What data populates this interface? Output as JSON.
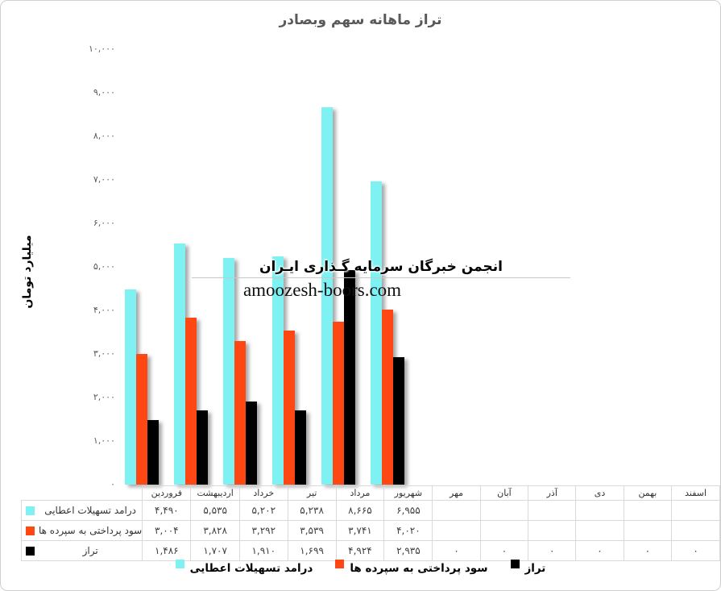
{
  "watermark": {
    "line1": "انجمن خبرگان سرمایه گـذاری ایـران",
    "line2": "amoozesh-boors.com"
  },
  "colors": {
    "series_cyan": "#7EF2F2",
    "series_orange": "#FF4713",
    "series_black": "#000000",
    "title_gray": "#595959",
    "table_border": "#D9D9D9"
  },
  "chart_data": {
    "type": "bar",
    "title": "تراز ماهانه سهم وبصادر",
    "xlabel": "",
    "ylabel": "میلیارد تومان",
    "ylim": [
      0,
      10000
    ],
    "y_tick_step": 1000,
    "y_tick_labels": [
      "۱۰,۰۰۰",
      "۹,۰۰۰",
      "۸,۰۰۰",
      "۷,۰۰۰",
      "۶,۰۰۰",
      "۵,۰۰۰",
      "۴,۰۰۰",
      "۳,۰۰۰",
      "۲,۰۰۰",
      "۱,۰۰۰",
      "۰"
    ],
    "grid": false,
    "legend_position": "bottom",
    "categories": [
      "فروردین",
      "اردیبهشت",
      "خرداد",
      "تیر",
      "مرداد",
      "شهریور",
      "مهر",
      "آبان",
      "آذر",
      "دی",
      "بهمن",
      "اسفند"
    ],
    "series": [
      {
        "name": "درامد تسهیلات اعطایی",
        "color": "#7EF2F2",
        "values": [
          4490,
          5535,
          5202,
          5238,
          8665,
          6955,
          null,
          null,
          null,
          null,
          null,
          null
        ],
        "display": [
          "۴,۴۹۰",
          "۵,۵۳۵",
          "۵,۲۰۲",
          "۵,۲۳۸",
          "۸,۶۶۵",
          "۶,۹۵۵",
          "",
          "",
          "",
          "",
          "",
          ""
        ]
      },
      {
        "name": "سود پرداختی به سپرده ها",
        "color": "#FF4713",
        "values": [
          3004,
          3828,
          3292,
          3539,
          3741,
          4020,
          null,
          null,
          null,
          null,
          null,
          null
        ],
        "display": [
          "۳,۰۰۴",
          "۳,۸۲۸",
          "۳,۲۹۲",
          "۳,۵۳۹",
          "۳,۷۴۱",
          "۴,۰۲۰",
          "",
          "",
          "",
          "",
          "",
          ""
        ]
      },
      {
        "name": "تراز",
        "color": "#000000",
        "values": [
          1486,
          1707,
          1910,
          1699,
          4924,
          2935,
          0,
          0,
          0,
          0,
          0,
          0
        ],
        "display": [
          "۱,۴۸۶",
          "۱,۷۰۷",
          "۱,۹۱۰",
          "۱,۶۹۹",
          "۴,۹۲۴",
          "۲,۹۳۵",
          "۰",
          "۰",
          "۰",
          "۰",
          "۰",
          "۰"
        ]
      }
    ]
  }
}
